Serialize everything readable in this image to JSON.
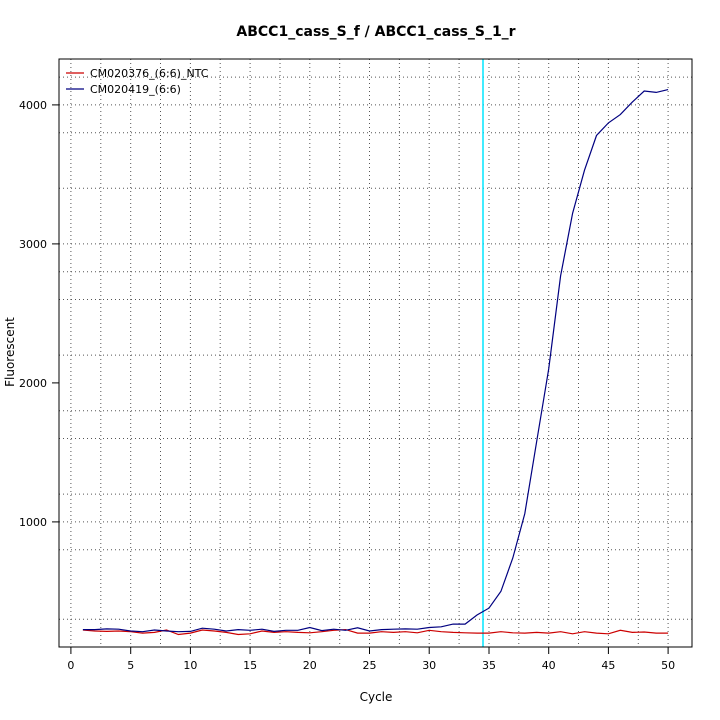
{
  "chart_data": {
    "type": "line",
    "title": "ABCC1_cass_S_f / ABCC1_cass_S_1_r",
    "xlabel": "Cycle",
    "ylabel": "Fluorescent",
    "xlim": [
      -1,
      52
    ],
    "ylim": [
      100,
      4330
    ],
    "x_ticks": [
      0,
      5,
      10,
      15,
      20,
      25,
      30,
      35,
      40,
      45,
      50
    ],
    "y_ticks": [
      1000,
      2000,
      3000,
      4000
    ],
    "x_grid": [
      2.5,
      7.5,
      12.5,
      17.5,
      22.5,
      27.5,
      32.5,
      37.5,
      42.5,
      47.5
    ],
    "y_grid": [
      300,
      800,
      1000,
      1200,
      1600,
      1800,
      2200,
      2600,
      2800,
      3000,
      3400,
      3800,
      4000,
      4200
    ],
    "grid": true,
    "legend_position": "top-left",
    "threshold": {
      "x": 34.5,
      "color": "#00e5ff"
    },
    "x": [
      1,
      2,
      3,
      4,
      5,
      6,
      7,
      8,
      9,
      10,
      11,
      12,
      13,
      14,
      15,
      16,
      17,
      18,
      19,
      20,
      21,
      22,
      23,
      24,
      25,
      26,
      27,
      28,
      29,
      30,
      31,
      32,
      33,
      34,
      35,
      36,
      37,
      38,
      39,
      40,
      41,
      42,
      43,
      44,
      45,
      46,
      47,
      48,
      49,
      50
    ],
    "series": [
      {
        "name": "CM020376_(6:6)_NTC",
        "color": "#cc0000",
        "values": [
          222,
          215,
          212,
          215,
          210,
          200,
          205,
          222,
          190,
          200,
          222,
          215,
          205,
          190,
          195,
          215,
          205,
          210,
          205,
          202,
          210,
          220,
          225,
          200,
          200,
          210,
          205,
          210,
          202,
          220,
          210,
          205,
          202,
          200,
          200,
          210,
          202,
          200,
          205,
          200,
          210,
          195,
          210,
          200,
          195,
          220,
          205,
          208,
          200,
          200
        ]
      },
      {
        "name": "CM020419_(6:6)",
        "color": "#000080",
        "values": [
          225,
          225,
          230,
          228,
          215,
          210,
          222,
          215,
          210,
          212,
          235,
          228,
          215,
          225,
          220,
          228,
          212,
          220,
          220,
          240,
          218,
          228,
          220,
          238,
          215,
          225,
          228,
          230,
          228,
          240,
          245,
          265,
          265,
          330,
          380,
          500,
          740,
          1060,
          1580,
          2100,
          2770,
          3220,
          3530,
          3780,
          3870,
          3930,
          4020,
          4100,
          4090,
          4110
        ]
      }
    ]
  }
}
